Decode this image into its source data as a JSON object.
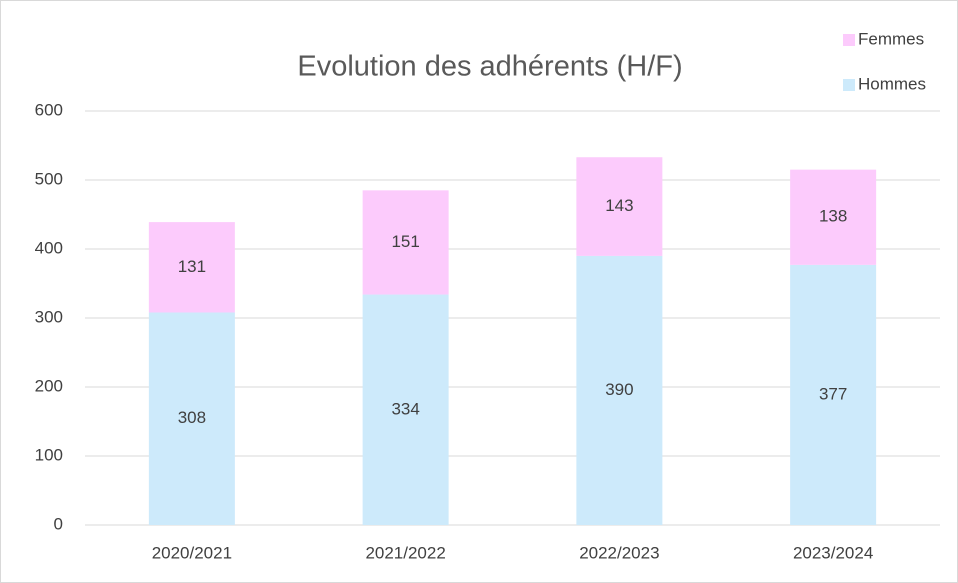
{
  "chart_data": {
    "type": "stacked_bar",
    "title": "Evolution des adhérents (H/F)",
    "categories": [
      "2020/2021",
      "2021/2022",
      "2022/2023",
      "2023/2024"
    ],
    "series": [
      {
        "name": "Hommes",
        "color": "#cdeafb",
        "values": [
          308,
          334,
          390,
          377
        ]
      },
      {
        "name": "Femmes",
        "color": "#fccbfc",
        "values": [
          131,
          151,
          143,
          138
        ]
      }
    ],
    "ylim": [
      0,
      600
    ],
    "yticks": [
      0,
      100,
      200,
      300,
      400,
      500,
      600
    ],
    "grid": true,
    "legend": "top-right"
  }
}
